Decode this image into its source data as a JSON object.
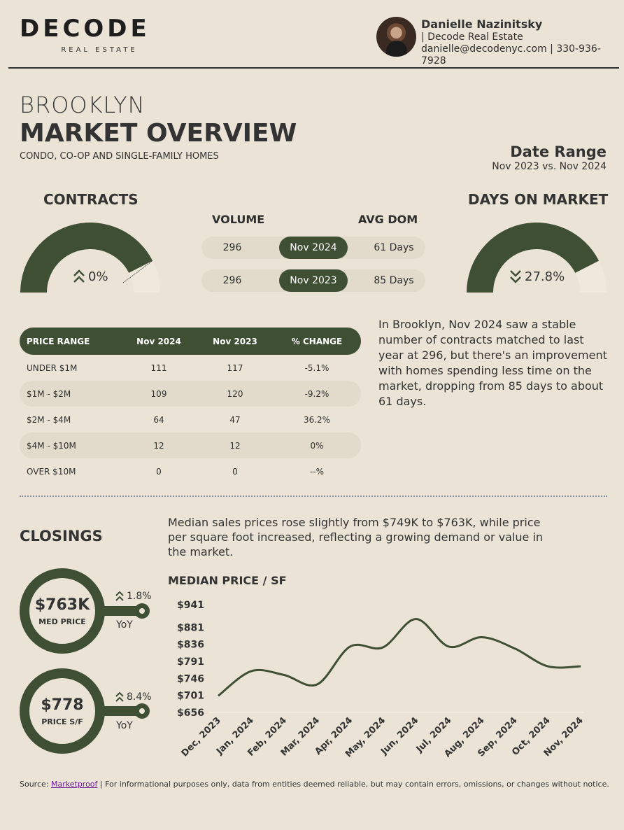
{
  "header": {
    "logo_main": "DECODE",
    "logo_sub": "REAL ESTATE",
    "agent_name": "Danielle Nazinitsky",
    "agent_company": "| Decode Real Estate",
    "agent_contact": "danielle@decodenyc.com | 330-936-7928"
  },
  "title": {
    "area": "BROOKLYN",
    "main": "MARKET OVERVIEW",
    "sub": "CONDO, CO-OP AND SINGLE-FAMILY HOMES"
  },
  "date_range": {
    "label": "Date Range",
    "value": "Nov 2023 vs. Nov 2024"
  },
  "contracts": {
    "title": "CONTRACTS",
    "change": "0%",
    "gauge_fill": 0.85,
    "direction_icon": "chevron-double-up-icon"
  },
  "dom": {
    "title": "DAYS ON MARKET",
    "change": "27.8%",
    "gauge_fill": 0.85,
    "direction_icon": "chevron-double-down-icon"
  },
  "comparison": {
    "volume_label": "VOLUME",
    "avg_dom_label": "AVG DOM",
    "rows": [
      {
        "volume": "296",
        "period": "Nov 2024",
        "dom": "61 Days"
      },
      {
        "volume": "296",
        "period": "Nov 2023",
        "dom": "85 Days"
      }
    ]
  },
  "price_table": {
    "headers": [
      "PRICE RANGE",
      "Nov 2024",
      "Nov 2023",
      "% CHANGE"
    ],
    "rows": [
      [
        "UNDER $1M",
        "111",
        "117",
        "-5.1%"
      ],
      [
        "$1M - $2M",
        "109",
        "120",
        "-9.2%"
      ],
      [
        "$2M - $4M",
        "64",
        "47",
        "36.2%"
      ],
      [
        "$4M - $10M",
        "12",
        "12",
        "0%"
      ],
      [
        "OVER $10M",
        "0",
        "0",
        "--%"
      ]
    ]
  },
  "contracts_summary": "In Brooklyn, Nov 2024 saw a stable number of contracts matched to last year at 296, but there's an improvement with homes spending less time on the market, dropping from 85 days to about 61 days.",
  "closings": {
    "title": "CLOSINGS",
    "summary": "Median sales prices rose slightly from $749K to $763K, while price per square foot increased, reflecting a growing demand or value in the market.",
    "med_price": {
      "value": "$763K",
      "label": "MED PRICE",
      "change": "1.8%",
      "yoy": "YoY"
    },
    "price_sf": {
      "value": "$778",
      "label": "PRICE S/F",
      "change": "8.4%",
      "yoy": "YoY"
    }
  },
  "chart_data": {
    "type": "line",
    "title": "MEDIAN PRICE / SF",
    "categories": [
      "Dec, 2023",
      "Jan, 2024",
      "Feb, 2024",
      "Mar, 2024",
      "Apr, 2024",
      "May, 2024",
      "Jun, 2024",
      "Jul, 2024",
      "Aug, 2024",
      "Sep, 2024",
      "Oct, 2024",
      "Nov, 2024"
    ],
    "values": [
      700,
      765,
      755,
      730,
      830,
      828,
      903,
      830,
      855,
      825,
      778,
      778
    ],
    "yticks": [
      "$941",
      "$881",
      "$836",
      "$791",
      "$746",
      "$701",
      "$656"
    ],
    "ytick_values": [
      941,
      881,
      836,
      791,
      746,
      701,
      656
    ],
    "ylim": [
      656,
      941
    ],
    "grid": false,
    "color": "#3f4f33"
  },
  "footer": {
    "source_label": "Source:",
    "source_link": "Marketproof",
    "disclaimer": "| For informational purposes only, data from entities deemed reliable, but may contain errors, omissions, or changes without notice."
  }
}
